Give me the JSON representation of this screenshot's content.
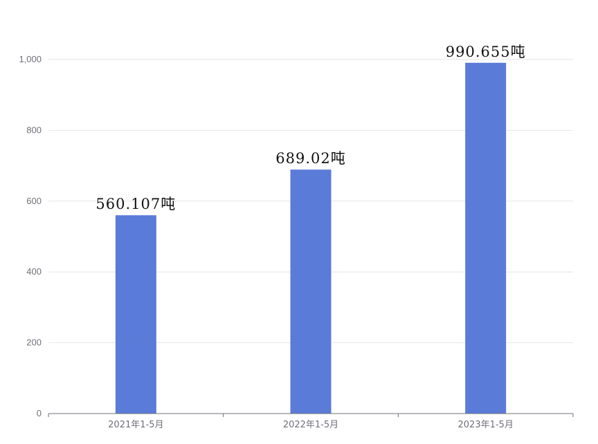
{
  "chart_data": {
    "type": "bar",
    "title": "",
    "xlabel": "",
    "ylabel": "",
    "categories": [
      "2021年1-5月",
      "2022年1-5月",
      "2023年1-5月"
    ],
    "values": [
      560.107,
      689.02,
      990.655
    ],
    "data_labels": [
      "560.107吨",
      "689.02吨",
      "990.655吨"
    ],
    "ylim": [
      0,
      1000
    ],
    "yticks": [
      0,
      200,
      400,
      600,
      800,
      1000
    ],
    "ytick_labels": [
      "0",
      "200",
      "400",
      "600",
      "800",
      "1,000"
    ],
    "grid": true,
    "bar_color": "#5b7bd9",
    "grid_color": "#e6e6e6",
    "axis_color": "#6e7079"
  }
}
